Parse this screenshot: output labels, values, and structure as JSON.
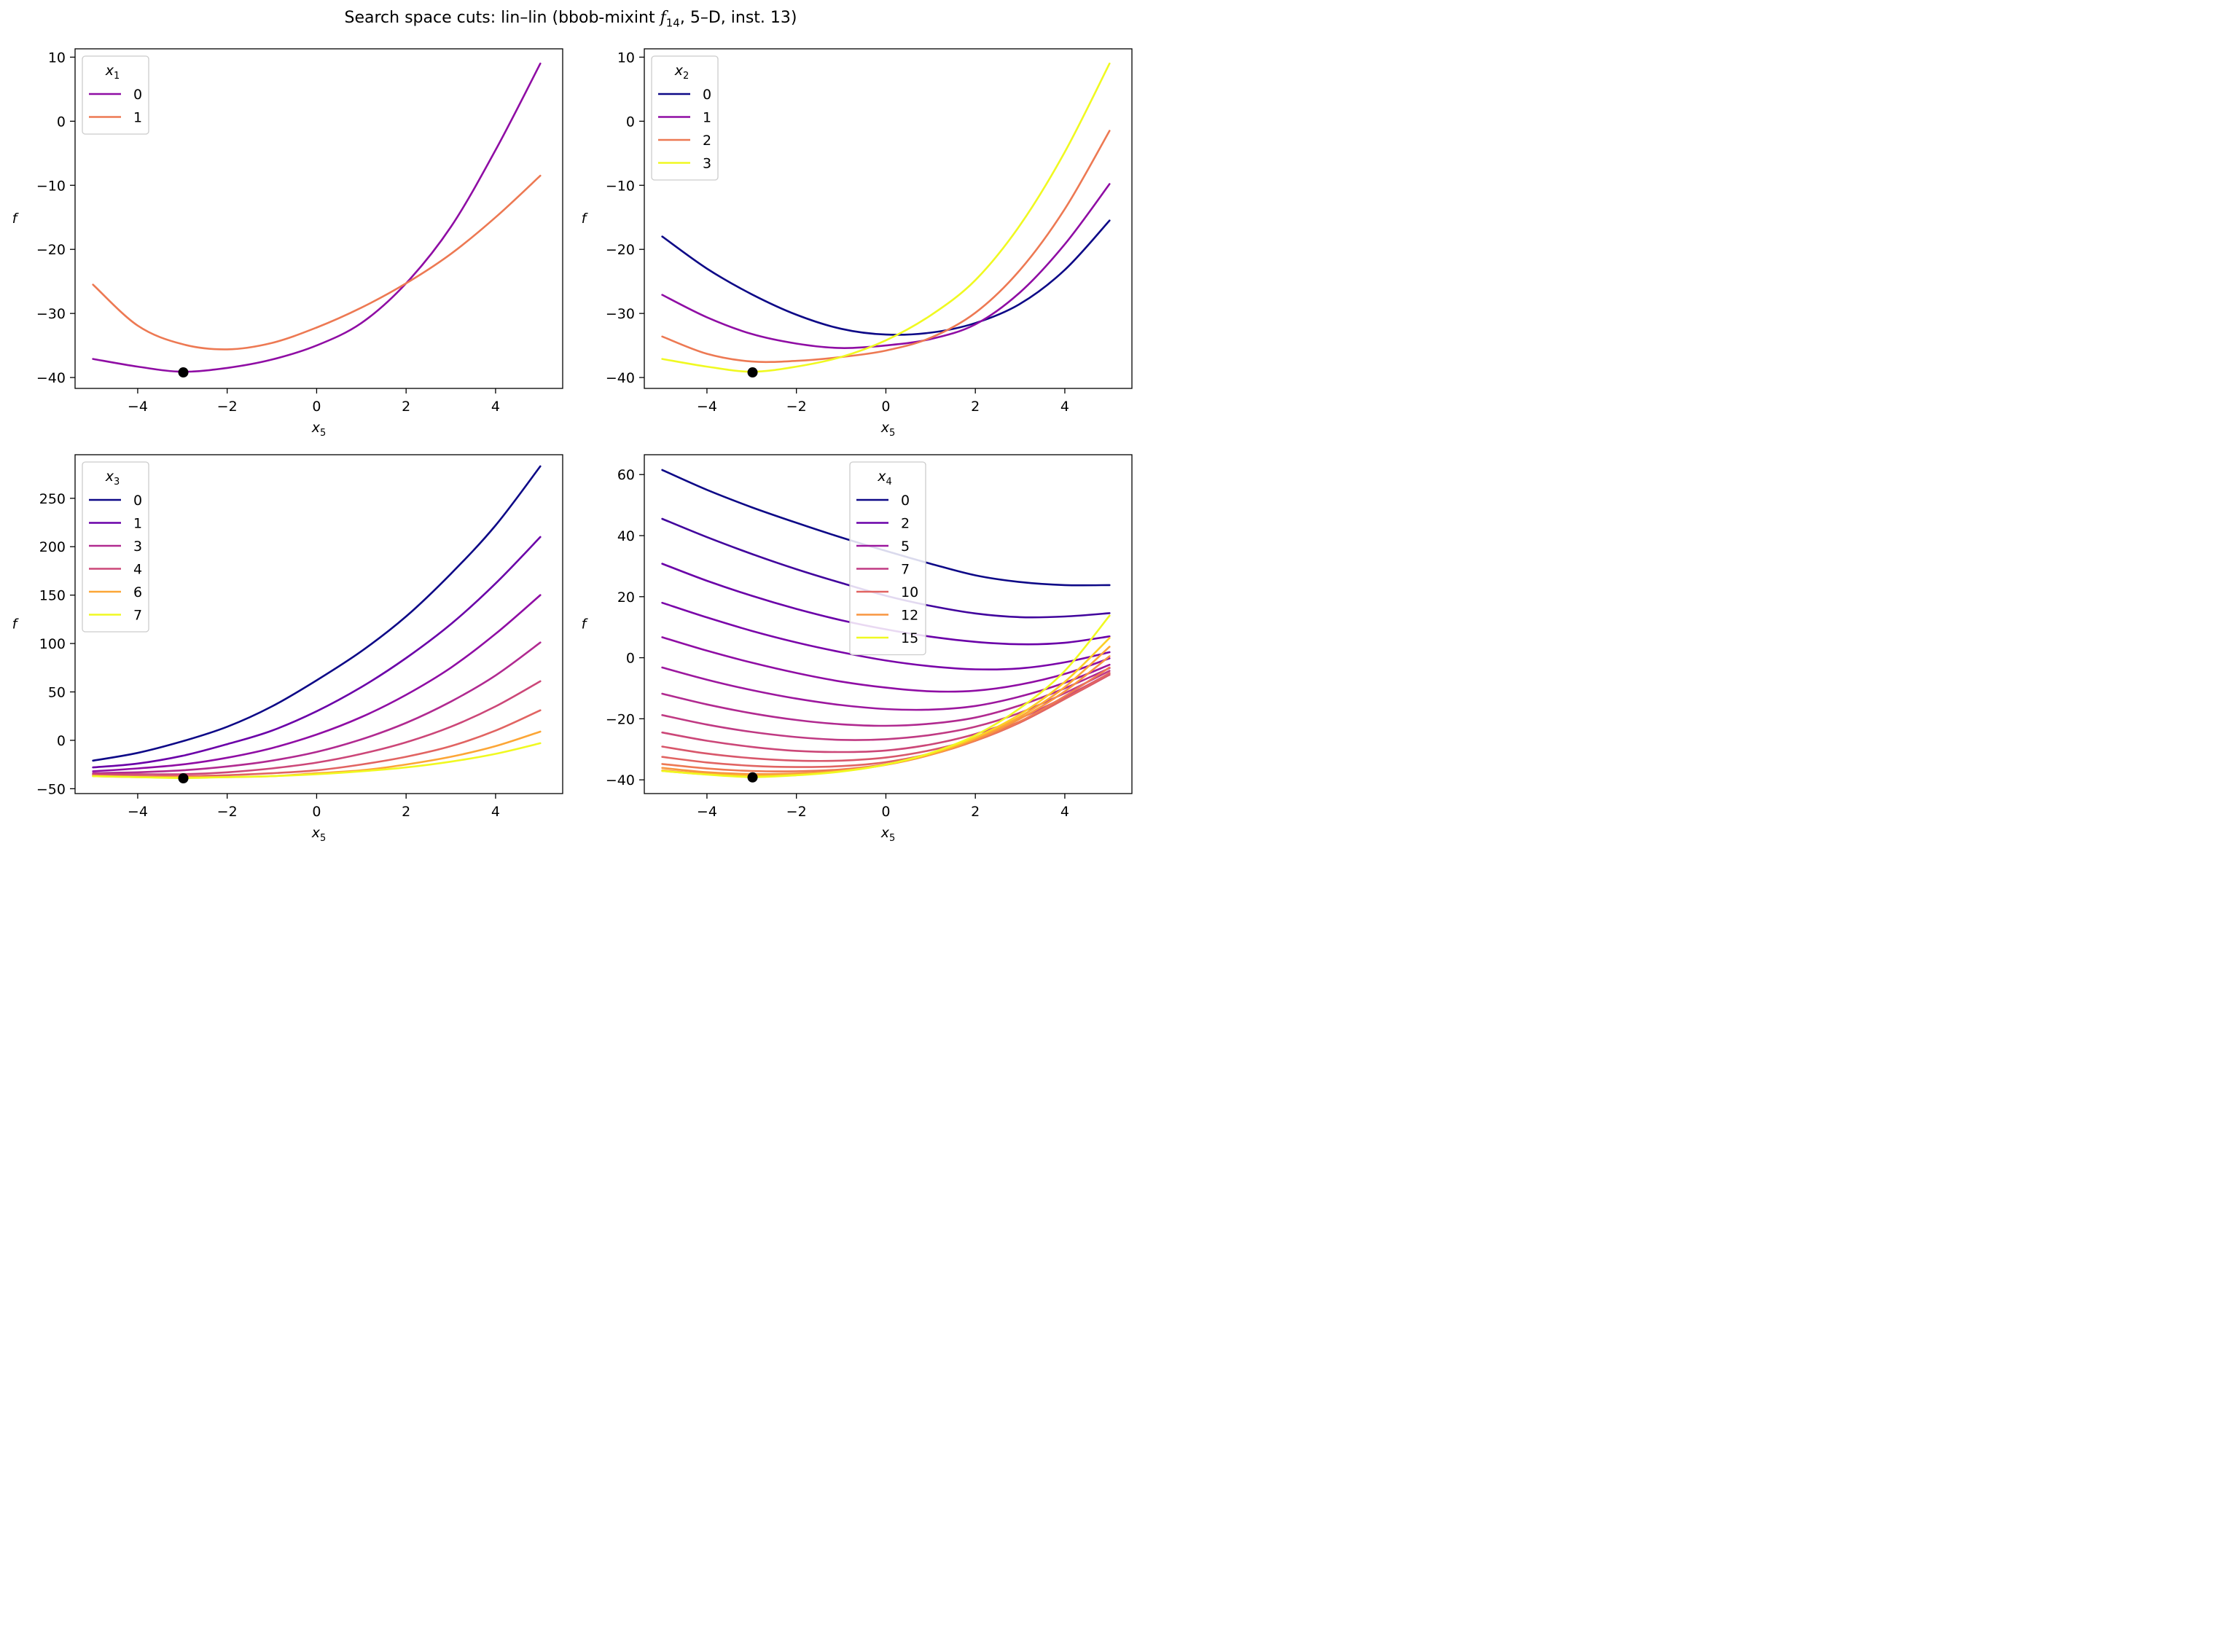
{
  "figure": {
    "title_prefix": "Search space cuts: lin–lin (bbob-mixint ",
    "title_f": "f",
    "title_sub": "14",
    "title_suffix": ", 5–D, inst. 13)"
  },
  "chart_data": [
    {
      "type": "line",
      "xlabel": "x",
      "xlabel_sub": "5",
      "ylabel": "f",
      "xlim": [
        -5.4,
        5.5
      ],
      "ylim": [
        -41.7,
        11.3
      ],
      "xticks": [
        -4,
        -2,
        0,
        2,
        4
      ],
      "xtick_labels": [
        "−4",
        "−2",
        "0",
        "2",
        "4"
      ],
      "yticks": [
        10,
        0,
        -10,
        -20,
        -30,
        -40
      ],
      "ytick_labels": [
        "10",
        "0",
        "−10",
        "−20",
        "−30",
        "−40"
      ],
      "grid": false,
      "legend": {
        "title": "x",
        "title_sub": "1",
        "placement": "upper left"
      },
      "marker": {
        "x": -2.98,
        "y": -39.2,
        "color": "#000000"
      },
      "series": [
        {
          "name": "0",
          "color": "#8f0da4",
          "x": [
            -5,
            -4,
            -3,
            -2,
            -1,
            0,
            1,
            2,
            3,
            4,
            5
          ],
          "y": [
            -37.1,
            -38.3,
            -39.1,
            -38.5,
            -37.2,
            -35.0,
            -31.5,
            -25.3,
            -16.5,
            -4.5,
            9.0
          ]
        },
        {
          "name": "1",
          "color": "#ed7953",
          "x": [
            -5,
            -4,
            -3,
            -2,
            -1,
            0,
            1,
            2,
            3,
            4,
            5
          ],
          "y": [
            -25.5,
            -31.9,
            -34.8,
            -35.6,
            -34.6,
            -32.2,
            -29.1,
            -25.3,
            -20.7,
            -15.0,
            -8.5
          ]
        }
      ]
    },
    {
      "type": "line",
      "xlabel": "x",
      "xlabel_sub": "5",
      "ylabel": "f",
      "xlim": [
        -5.4,
        5.5
      ],
      "ylim": [
        -41.7,
        11.3
      ],
      "xticks": [
        -4,
        -2,
        0,
        2,
        4
      ],
      "xtick_labels": [
        "−4",
        "−2",
        "0",
        "2",
        "4"
      ],
      "yticks": [
        10,
        0,
        -10,
        -20,
        -30,
        -40
      ],
      "ytick_labels": [
        "10",
        "0",
        "−10",
        "−20",
        "−30",
        "−40"
      ],
      "grid": false,
      "legend": {
        "title": "x",
        "title_sub": "2",
        "placement": "upper left"
      },
      "marker": {
        "x": -2.98,
        "y": -39.2,
        "color": "#000000"
      },
      "series": [
        {
          "name": "0",
          "color": "#0d0887",
          "x": [
            -5,
            -4,
            -3,
            -2,
            -1,
            0,
            1,
            2,
            3,
            4,
            5
          ],
          "y": [
            -18.0,
            -23.0,
            -27.0,
            -30.2,
            -32.4,
            -33.3,
            -33.0,
            -31.5,
            -28.5,
            -23.2,
            -15.5
          ]
        },
        {
          "name": "1",
          "color": "#8f0da4",
          "x": [
            -5,
            -4,
            -3,
            -2,
            -1,
            0,
            1,
            2,
            3,
            4,
            5
          ],
          "y": [
            -27.1,
            -30.6,
            -33.2,
            -34.7,
            -35.4,
            -35.0,
            -34.0,
            -31.7,
            -26.7,
            -19.2,
            -9.8
          ]
        },
        {
          "name": "2",
          "color": "#ed7953",
          "x": [
            -5,
            -4,
            -3,
            -2,
            -1,
            0,
            1,
            2,
            3,
            4,
            5
          ],
          "y": [
            -33.6,
            -36.3,
            -37.5,
            -37.4,
            -36.8,
            -35.8,
            -33.8,
            -29.9,
            -23.2,
            -13.7,
            -1.5
          ]
        },
        {
          "name": "3",
          "color": "#f0f921",
          "x": [
            -5,
            -4,
            -3,
            -2,
            -1,
            0,
            1,
            2,
            3,
            4,
            5
          ],
          "y": [
            -37.1,
            -38.3,
            -39.1,
            -38.3,
            -36.8,
            -34.2,
            -30.3,
            -24.8,
            -16.2,
            -4.8,
            9.0
          ]
        }
      ]
    },
    {
      "type": "line",
      "xlabel": "x",
      "xlabel_sub": "5",
      "ylabel": "f",
      "xlim": [
        -5.4,
        5.5
      ],
      "ylim": [
        -55,
        295
      ],
      "xticks": [
        -4,
        -2,
        0,
        2,
        4
      ],
      "xtick_labels": [
        "−4",
        "−2",
        "0",
        "2",
        "4"
      ],
      "yticks": [
        250,
        200,
        150,
        100,
        50,
        0,
        -50
      ],
      "ytick_labels": [
        "250",
        "200",
        "150",
        "100",
        "50",
        "0",
        "−50"
      ],
      "grid": false,
      "legend": {
        "title": "x",
        "title_sub": "3",
        "placement": "upper left"
      },
      "marker": {
        "x": -2.98,
        "y": -39.2,
        "color": "#000000"
      },
      "series": [
        {
          "name": "0",
          "color": "#0d0887",
          "x": [
            -5,
            -4,
            -3,
            -2,
            -1,
            0,
            1,
            2,
            3,
            4,
            5
          ],
          "y": [
            -21,
            -13,
            -1,
            14,
            35,
            62,
            92,
            128,
            172,
            222,
            283
          ]
        },
        {
          "name": "1",
          "color": "#6a00a8",
          "x": [
            -5,
            -4,
            -3,
            -2,
            -1,
            0,
            1,
            2,
            3,
            4,
            5
          ],
          "y": [
            -28,
            -24,
            -16,
            -4,
            10,
            30,
            55,
            85,
            120,
            162,
            210
          ]
        },
        {
          "name": "",
          "color": "#8f0da4",
          "x": [
            -5,
            -4,
            -3,
            -2,
            -1,
            0,
            1,
            2,
            3,
            4,
            5
          ],
          "y": [
            -32,
            -29,
            -25,
            -18,
            -8,
            6,
            24,
            47,
            75,
            110,
            150
          ]
        },
        {
          "name": "3",
          "color": "#b12a90",
          "x": [
            -5,
            -4,
            -3,
            -2,
            -1,
            0,
            1,
            2,
            3,
            4,
            5
          ],
          "y": [
            -34,
            -33,
            -31,
            -27,
            -21,
            -12,
            1,
            18,
            40,
            67,
            101
          ]
        },
        {
          "name": "4",
          "color": "#cc4778",
          "x": [
            -5,
            -4,
            -3,
            -2,
            -1,
            0,
            1,
            2,
            3,
            4,
            5
          ],
          "y": [
            -35,
            -35,
            -35,
            -33,
            -29,
            -23,
            -14,
            -2,
            14,
            35,
            61
          ]
        },
        {
          "name": "",
          "color": "#e16462",
          "x": [
            -5,
            -4,
            -3,
            -2,
            -1,
            0,
            1,
            2,
            3,
            4,
            5
          ],
          "y": [
            -36,
            -37,
            -37,
            -36,
            -34,
            -31,
            -25,
            -17,
            -6,
            10,
            31
          ]
        },
        {
          "name": "6",
          "color": "#fca636",
          "x": [
            -5,
            -4,
            -3,
            -2,
            -1,
            0,
            1,
            2,
            3,
            4,
            5
          ],
          "y": [
            -37,
            -38,
            -38,
            -38,
            -37,
            -34,
            -31,
            -25,
            -17,
            -6,
            9
          ]
        },
        {
          "name": "7",
          "color": "#f0f921",
          "x": [
            -5,
            -4,
            -3,
            -2,
            -1,
            0,
            1,
            2,
            3,
            4,
            5
          ],
          "y": [
            -37,
            -38,
            -39,
            -38,
            -37,
            -35,
            -32,
            -28,
            -22,
            -14,
            -3
          ]
        }
      ]
    },
    {
      "type": "line",
      "xlabel": "x",
      "xlabel_sub": "5",
      "ylabel": "f",
      "xlim": [
        -5.4,
        5.5
      ],
      "ylim": [
        -44.5,
        66.5
      ],
      "xticks": [
        -4,
        -2,
        0,
        2,
        4
      ],
      "xtick_labels": [
        "−4",
        "−2",
        "0",
        "2",
        "4"
      ],
      "yticks": [
        60,
        40,
        20,
        0,
        -20,
        -40
      ],
      "ytick_labels": [
        "60",
        "40",
        "20",
        "0",
        "−20",
        "−40"
      ],
      "grid": false,
      "legend": {
        "title": "x",
        "title_sub": "4",
        "placement": "upper center"
      },
      "marker": {
        "x": -2.98,
        "y": -39.2,
        "color": "#000000"
      },
      "series": [
        {
          "name": "0",
          "color": "#0d0887",
          "x": [
            -5,
            -4,
            -3,
            -2,
            -1,
            0,
            1,
            2,
            3,
            4,
            5
          ],
          "y": [
            61.5,
            55.0,
            49.3,
            44.2,
            39.4,
            35.0,
            30.8,
            27.0,
            24.8,
            23.8,
            23.8
          ]
        },
        {
          "name": "",
          "color": "#41049d",
          "x": [
            -5,
            -4,
            -3,
            -2,
            -1,
            0,
            1,
            2,
            3,
            4,
            5
          ],
          "y": [
            45.5,
            39.5,
            34.0,
            29.0,
            24.5,
            20.3,
            17.0,
            14.5,
            13.3,
            13.5,
            14.6
          ]
        },
        {
          "name": "2",
          "color": "#6a00a8",
          "x": [
            -5,
            -4,
            -3,
            -2,
            -1,
            0,
            1,
            2,
            3,
            4,
            5
          ],
          "y": [
            30.8,
            25.2,
            20.3,
            16.0,
            12.3,
            9.3,
            6.9,
            5.2,
            4.4,
            4.9,
            7.0
          ]
        },
        {
          "name": "",
          "color": "#7a04a9",
          "x": [
            -5,
            -4,
            -3,
            -2,
            -1,
            0,
            1,
            2,
            3,
            4,
            5
          ],
          "y": [
            18.0,
            13.2,
            8.8,
            5.0,
            1.8,
            -0.9,
            -2.8,
            -3.8,
            -3.5,
            -1.5,
            1.8
          ]
        },
        {
          "name": "",
          "color": "#8f0da4",
          "x": [
            -5,
            -4,
            -3,
            -2,
            -1,
            0,
            1,
            2,
            3,
            4,
            5
          ],
          "y": [
            6.7,
            2.3,
            -1.6,
            -5.0,
            -7.8,
            -9.8,
            -11.0,
            -10.8,
            -8.8,
            -5.3,
            -0.2
          ]
        },
        {
          "name": "5",
          "color": "#9c179e",
          "x": [
            -5,
            -4,
            -3,
            -2,
            -1,
            0,
            1,
            2,
            3,
            4,
            5
          ],
          "y": [
            -3.2,
            -7.2,
            -10.6,
            -13.4,
            -15.5,
            -16.8,
            -17.0,
            -15.8,
            -12.7,
            -8.2,
            -2.3
          ]
        },
        {
          "name": "",
          "color": "#b12a90",
          "x": [
            -5,
            -4,
            -3,
            -2,
            -1,
            0,
            1,
            2,
            3,
            4,
            5
          ],
          "y": [
            -11.8,
            -15.3,
            -18.2,
            -20.4,
            -21.8,
            -22.3,
            -21.6,
            -19.6,
            -15.6,
            -10.0,
            -3.4
          ]
        },
        {
          "name": "7",
          "color": "#c03a83",
          "x": [
            -5,
            -4,
            -3,
            -2,
            -1,
            0,
            1,
            2,
            3,
            4,
            5
          ],
          "y": [
            -18.8,
            -21.9,
            -24.3,
            -26.0,
            -26.9,
            -26.7,
            -25.3,
            -22.6,
            -18.0,
            -11.6,
            -4.3
          ]
        },
        {
          "name": "",
          "color": "#cc4778",
          "x": [
            -5,
            -4,
            -3,
            -2,
            -1,
            0,
            1,
            2,
            3,
            4,
            5
          ],
          "y": [
            -24.5,
            -27.2,
            -29.2,
            -30.5,
            -30.9,
            -30.4,
            -28.4,
            -25.0,
            -19.8,
            -12.9,
            -5.1
          ]
        },
        {
          "name": "",
          "color": "#d8576b",
          "x": [
            -5,
            -4,
            -3,
            -2,
            -1,
            0,
            1,
            2,
            3,
            4,
            5
          ],
          "y": [
            -29.1,
            -31.4,
            -32.9,
            -33.7,
            -33.7,
            -32.7,
            -30.3,
            -26.5,
            -20.9,
            -13.5,
            -5.6
          ]
        },
        {
          "name": "10",
          "color": "#e16462",
          "x": [
            -5,
            -4,
            -3,
            -2,
            -1,
            0,
            1,
            2,
            3,
            4,
            5
          ],
          "y": [
            -32.5,
            -34.3,
            -35.4,
            -35.8,
            -35.5,
            -34.2,
            -31.4,
            -27.2,
            -21.2,
            -13.5,
            -5.0
          ]
        },
        {
          "name": "",
          "color": "#ed7953",
          "x": [
            -5,
            -4,
            -3,
            -2,
            -1,
            0,
            1,
            2,
            3,
            4,
            5
          ],
          "y": [
            -34.8,
            -36.3,
            -37.1,
            -37.2,
            -36.6,
            -34.9,
            -31.8,
            -27.2,
            -20.9,
            -12.6,
            -3.2
          ]
        },
        {
          "name": "12",
          "color": "#f89540",
          "x": [
            -5,
            -4,
            -3,
            -2,
            -1,
            0,
            1,
            2,
            3,
            4,
            5
          ],
          "y": [
            -36.1,
            -37.5,
            -38.1,
            -37.9,
            -37.0,
            -35.1,
            -31.8,
            -26.8,
            -20.0,
            -11.0,
            0.5
          ]
        },
        {
          "name": "",
          "color": "#fca636",
          "x": [
            -5,
            -4,
            -3,
            -2,
            -1,
            0,
            1,
            2,
            3,
            4,
            5
          ],
          "y": [
            -36.9,
            -38.0,
            -38.5,
            -38.2,
            -37.1,
            -35.0,
            -31.6,
            -26.4,
            -19.3,
            -9.6,
            3.6
          ]
        },
        {
          "name": "",
          "color": "#fcce25",
          "x": [
            -5,
            -4,
            -3,
            -2,
            -1,
            0,
            1,
            2,
            3,
            4,
            5
          ],
          "y": [
            -37.1,
            -38.2,
            -38.8,
            -38.4,
            -37.2,
            -35.0,
            -31.4,
            -26.1,
            -18.5,
            -7.9,
            6.5
          ]
        },
        {
          "name": "15",
          "color": "#f0f921",
          "x": [
            -5,
            -4,
            -3,
            -2,
            -1,
            0,
            1,
            2,
            3,
            4,
            5
          ],
          "y": [
            -37.1,
            -38.3,
            -39.1,
            -38.5,
            -37.3,
            -35.0,
            -31.2,
            -25.4,
            -16.5,
            -4.3,
            13.8
          ]
        }
      ]
    }
  ]
}
